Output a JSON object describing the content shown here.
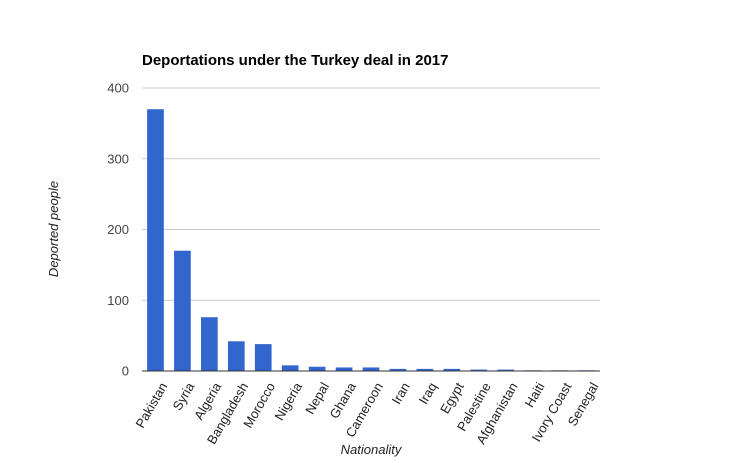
{
  "chart_data": {
    "type": "bar",
    "title": "Deportations under the Turkey deal in 2017",
    "xlabel": "Nationality",
    "ylabel": "Deported people",
    "ylim": [
      0,
      400
    ],
    "yticks": [
      0,
      100,
      200,
      300,
      400
    ],
    "grid": true,
    "legend": "none",
    "bar_color": "#3366cc",
    "categories": [
      "Pakistan",
      "Syria",
      "Algeria",
      "Bangladesh",
      "Morocco",
      "Nigeria",
      "Nepal",
      "Ghana",
      "Cameroon",
      "Iran",
      "Iraq",
      "Egypt",
      "Palestine",
      "Afghanistan",
      "Haiti",
      "Ivory Coast",
      "Senegal"
    ],
    "values": [
      370,
      170,
      76,
      42,
      38,
      8,
      6,
      5,
      5,
      3,
      3,
      3,
      2,
      2,
      1,
      1,
      1
    ]
  }
}
